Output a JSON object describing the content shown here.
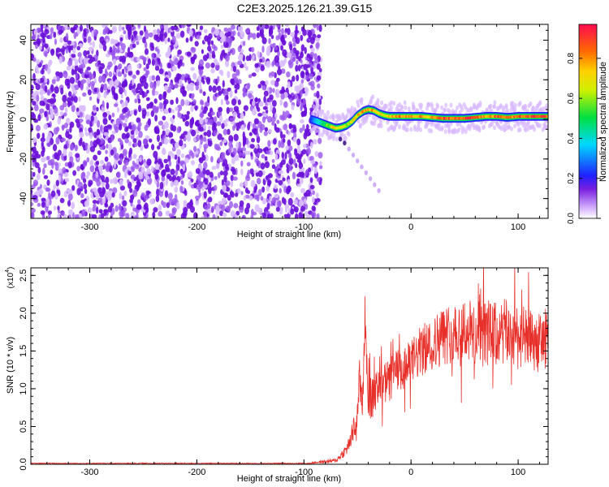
{
  "title": "C2E3.2025.126.21.39.G15",
  "colors": {
    "background": "#ffffff",
    "axis": "#000000",
    "scatter_purple": "#7a1fe0",
    "snr_line": "#e8302a"
  },
  "chart_data": [
    {
      "type": "heatmap",
      "xlabel": "Height of straight line (km)",
      "ylabel": "Frequency (Hz)",
      "xlim": [
        -355,
        128
      ],
      "ylim": [
        -50,
        48
      ],
      "xticks": [
        "-300",
        "-200",
        "-100",
        "0",
        "100"
      ],
      "yticks": [
        "40",
        "20",
        "0",
        "-20",
        "-40"
      ],
      "colorbar": {
        "label": "Normalized spectral amplitude",
        "range": [
          0.0,
          0.97
        ],
        "ticks": [
          "0.0",
          "0.2",
          "0.4",
          "0.6",
          "0.8"
        ]
      },
      "noise_region": {
        "x": [
          -355,
          -88
        ],
        "frequency": [
          -50,
          48
        ],
        "amplitude": 0.1
      },
      "signal_track": {
        "x": [
          -93,
          -85,
          -78,
          -70,
          -65,
          -60,
          -55,
          -50,
          -45,
          -40,
          -35,
          -30,
          -25,
          -20,
          -10,
          0,
          10,
          20,
          30,
          40,
          50,
          60,
          70,
          80,
          90,
          100,
          110,
          120,
          128
        ],
        "frequency": [
          0,
          -1.5,
          -3,
          -4.5,
          -4,
          -3,
          -1,
          2,
          4,
          5,
          4.5,
          3,
          2,
          1.5,
          1.5,
          1.5,
          1.5,
          1,
          0.5,
          0.5,
          0.5,
          1,
          1.5,
          1.5,
          1,
          1.5,
          1.5,
          1.5,
          1.5
        ],
        "amplitude": [
          0.25,
          0.45,
          0.6,
          0.8,
          0.7,
          0.65,
          0.7,
          0.75,
          0.85,
          0.85,
          0.8,
          0.75,
          0.7,
          0.75,
          0.85,
          0.8,
          0.85,
          0.8,
          0.9,
          0.92,
          0.95,
          0.9,
          0.85,
          0.9,
          0.92,
          0.9,
          0.92,
          0.95,
          0.9
        ]
      },
      "secondary_trail": {
        "x": [
          -66,
          -62,
          -58,
          -54,
          -50,
          -46,
          -42,
          -38,
          -34,
          -30
        ],
        "frequency": [
          -10,
          -12,
          -15,
          -18,
          -21,
          -24,
          -27,
          -30,
          -33,
          -36
        ]
      }
    },
    {
      "type": "line",
      "xlabel": "Height of straight line (km)",
      "ylabel": "SNR (10 * v/v)",
      "multiplier": "(x10",
      "multiplier_exp": "4",
      "multiplier_close": ")",
      "xlim": [
        -355,
        128
      ],
      "ylim": [
        0,
        2.6
      ],
      "xticks": [
        "-300",
        "-200",
        "-100",
        "0",
        "100"
      ],
      "yticks": [
        "0.0",
        "0.5",
        "1.0",
        "1.5",
        "2.0",
        "2.5"
      ],
      "series": [
        {
          "x": [
            -355,
            -300,
            -200,
            -100,
            -70,
            -60,
            -55,
            -50,
            -48,
            -45,
            -43,
            -40,
            -35,
            -30,
            -25,
            -20,
            -15,
            -10,
            0,
            10,
            20,
            30,
            40,
            50,
            60,
            70,
            80,
            90,
            100,
            110,
            120,
            128
          ],
          "y": [
            0.0,
            0.0,
            0.0,
            0.01,
            0.05,
            0.2,
            0.4,
            0.6,
            1.2,
            0.8,
            2.0,
            0.9,
            0.85,
            1.0,
            1.05,
            1.1,
            1.25,
            1.2,
            1.35,
            1.5,
            1.6,
            1.7,
            1.75,
            1.8,
            1.7,
            1.75,
            1.7,
            1.75,
            1.7,
            1.65,
            1.6,
            1.7
          ],
          "spread": [
            0.0,
            0.0,
            0.0,
            0.005,
            0.03,
            0.08,
            0.15,
            0.2,
            0.35,
            0.25,
            0.25,
            0.3,
            0.3,
            0.3,
            0.3,
            0.3,
            0.3,
            0.3,
            0.3,
            0.35,
            0.35,
            0.4,
            0.4,
            0.45,
            0.45,
            0.45,
            0.45,
            0.45,
            0.45,
            0.4,
            0.4,
            0.4
          ]
        }
      ]
    }
  ]
}
